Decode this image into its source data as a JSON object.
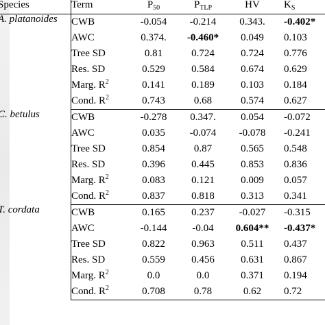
{
  "header": {
    "species": "Species",
    "term": "Term",
    "cols": [
      {
        "main": "P",
        "sub": "50"
      },
      {
        "main": "P",
        "sub": "TLP"
      },
      {
        "main": "HV",
        "sub": ""
      },
      {
        "main": "K",
        "sub": "S"
      }
    ]
  },
  "groups": [
    {
      "species": "A. platanoides",
      "rows": [
        {
          "term": "CWB",
          "sup": "",
          "values": [
            "-0.054",
            "-0.214",
            "0.343.",
            "-0.402*"
          ],
          "bold": [
            false,
            false,
            false,
            true
          ]
        },
        {
          "term": "AWC",
          "sup": "",
          "values": [
            "0.374.",
            "-0.460*",
            "0.049",
            "0.103"
          ],
          "bold": [
            false,
            true,
            false,
            false
          ]
        },
        {
          "term": "Tree SD",
          "sup": "",
          "values": [
            "0.81",
            "0.724",
            "0.724",
            "0.776"
          ],
          "bold": [
            false,
            false,
            false,
            false
          ]
        },
        {
          "term": "Res. SD",
          "sup": "",
          "values": [
            "0.529",
            "0.584",
            "0.674",
            "0.629"
          ],
          "bold": [
            false,
            false,
            false,
            false
          ]
        },
        {
          "term": "Marg. R",
          "sup": "2",
          "values": [
            "0.141",
            "0.189",
            "0.103",
            "0.184"
          ],
          "bold": [
            false,
            false,
            false,
            false
          ]
        },
        {
          "term": "Cond. R",
          "sup": "2",
          "values": [
            "0.743",
            "0.68",
            "0.574",
            "0.627"
          ],
          "bold": [
            false,
            false,
            false,
            false
          ]
        }
      ]
    },
    {
      "species": "C. betulus",
      "rows": [
        {
          "term": "CWB",
          "sup": "",
          "values": [
            "-0.278",
            "0.347.",
            "0.054",
            "-0.072"
          ],
          "bold": [
            false,
            false,
            false,
            false
          ]
        },
        {
          "term": "AWC",
          "sup": "",
          "values": [
            "0.035",
            "-0.074",
            "-0.078",
            "-0.241"
          ],
          "bold": [
            false,
            false,
            false,
            false
          ]
        },
        {
          "term": "Tree SD",
          "sup": "",
          "values": [
            "0.854",
            "0.87",
            "0.565",
            "0.548"
          ],
          "bold": [
            false,
            false,
            false,
            false
          ]
        },
        {
          "term": "Res. SD",
          "sup": "",
          "values": [
            "0.396",
            "0.445",
            "0.853",
            "0.836"
          ],
          "bold": [
            false,
            false,
            false,
            false
          ]
        },
        {
          "term": "Marg. R",
          "sup": "2",
          "values": [
            "0.083",
            "0.121",
            "0.009",
            "0.057"
          ],
          "bold": [
            false,
            false,
            false,
            false
          ]
        },
        {
          "term": "Cond. R",
          "sup": "2",
          "values": [
            "0.837",
            "0.818",
            "0.313",
            "0.341"
          ],
          "bold": [
            false,
            false,
            false,
            false
          ]
        }
      ]
    },
    {
      "species": "T. cordata",
      "rows": [
        {
          "term": "CWB",
          "sup": "",
          "values": [
            "0.165",
            "0.237",
            "-0.027",
            "-0.315"
          ],
          "bold": [
            false,
            false,
            false,
            false
          ]
        },
        {
          "term": "AWC",
          "sup": "",
          "values": [
            "-0.144",
            "-0.04",
            "0.604**",
            "-0.437*"
          ],
          "bold": [
            false,
            false,
            true,
            true
          ]
        },
        {
          "term": "Tree SD",
          "sup": "",
          "values": [
            "0.822",
            "0.963",
            "0.511",
            "0.437"
          ],
          "bold": [
            false,
            false,
            false,
            false
          ]
        },
        {
          "term": "Res. SD",
          "sup": "",
          "values": [
            "0.559",
            "0.456",
            "0.631",
            "0.867"
          ],
          "bold": [
            false,
            false,
            false,
            false
          ]
        },
        {
          "term": "Marg. R",
          "sup": "2",
          "values": [
            "0.0",
            "0.0",
            "0.371",
            "0.194"
          ],
          "bold": [
            false,
            false,
            false,
            false
          ]
        },
        {
          "term": "Cond. R",
          "sup": "2",
          "values": [
            "0.708",
            "0.78",
            "0.62",
            "0.72"
          ],
          "bold": [
            false,
            false,
            false,
            false
          ]
        }
      ]
    }
  ]
}
